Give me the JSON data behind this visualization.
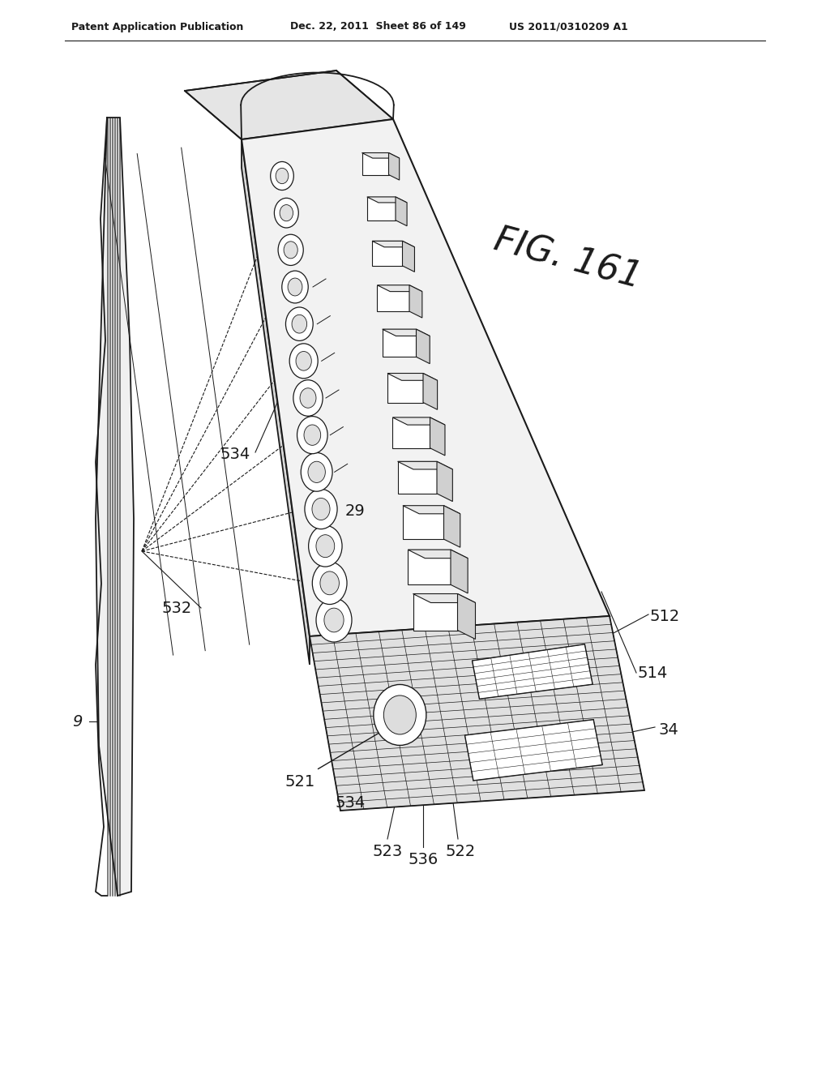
{
  "header_left": "Patent Application Publication",
  "header_center": "Dec. 22, 2011  Sheet 86 of 149",
  "header_right": "US 2011/0310209 A1",
  "fig_label": "FIG. 161",
  "bg_color": "#ffffff",
  "line_color": "#1a1a1a"
}
